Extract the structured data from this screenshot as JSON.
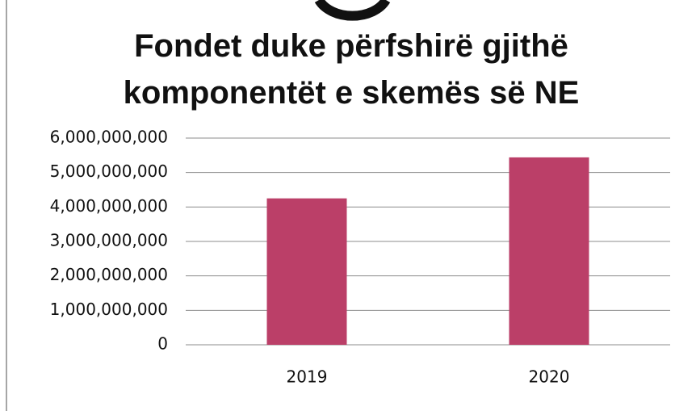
{
  "chart_data": {
    "type": "bar",
    "title": "Fondet duke përfshirë gjithë komponentët e skemës së NE",
    "categories": [
      "2019",
      "2020"
    ],
    "values": [
      4250000000,
      5440000000
    ],
    "color": "#bb3f68",
    "ylim": [
      0,
      6000000000
    ],
    "yticks": [
      0,
      {
        "value": 1000000000,
        "label": "1,000,000,000"
      },
      {
        "value": 2000000000,
        "label": "2,000,000,000"
      },
      {
        "value": 3000000000,
        "label": "3,000,000,000"
      },
      {
        "value": 4000000000,
        "label": "4,000,000,000"
      },
      {
        "value": 5000000000,
        "label": "5,000,000,000"
      },
      {
        "value": 6000000000,
        "label": "6,000,000,000"
      }
    ],
    "grid": true
  }
}
